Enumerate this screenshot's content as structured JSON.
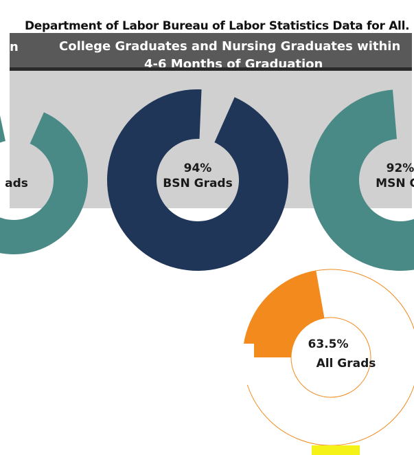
{
  "header": {
    "text": "Department of Labor Bureau of Labor Statistics Data for All..."
  },
  "title": {
    "left_fragment": "n",
    "line1": "College Graduates and Nursing Graduates within",
    "line2": "4-6 Months of Graduation"
  },
  "chart_data": {
    "type": "pie",
    "title": "College Graduates and Nursing Graduates within 4-6 Months of Graduation",
    "charts": [
      {
        "label_value": "",
        "label_name": "ads",
        "value": 90,
        "color": "#4a8a86"
      },
      {
        "label_value": "94%",
        "label_name": "BSN Grads",
        "value": 94,
        "color": "#1f3659"
      },
      {
        "label_value": "92%",
        "label_name": "MSN Gr",
        "value": 92,
        "color": "#4a8a86"
      },
      {
        "label_value": "63.5%",
        "label_name": "All Grads",
        "value": 63.5,
        "color": "#f28a1d"
      }
    ]
  },
  "colors": {
    "teal": "#4a8a86",
    "navy": "#1f3659",
    "orange": "#f28a1d",
    "band": "#595959",
    "panel": "#d0d0d0"
  }
}
